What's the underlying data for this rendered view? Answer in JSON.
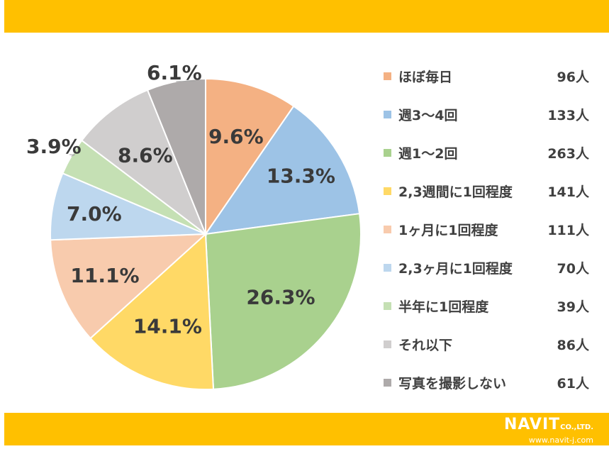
{
  "chart_data": {
    "type": "pie",
    "categories": [
      "ほぼ毎日",
      "週3～4回",
      "週1～2回",
      "2,3週間に1回程度",
      "1ヶ月に1回程度",
      "2,3ヶ月に1回程度",
      "半年に1回程度",
      "それ以下",
      "写真を撮影しない"
    ],
    "values": [
      9.6,
      13.3,
      26.3,
      14.1,
      11.1,
      7.0,
      3.9,
      8.6,
      6.1
    ],
    "labels": [
      "9.6%",
      "13.3%",
      "26.3%",
      "14.1%",
      "11.1%",
      "7.0%",
      "3.9%",
      "8.6%",
      "6.1%"
    ],
    "counts": [
      "96人",
      "133人",
      "263人",
      "141人",
      "111人",
      "70人",
      "39人",
      "86人",
      "61人"
    ],
    "colors": [
      "#F4B183",
      "#9DC3E6",
      "#A9D18E",
      "#FFD966",
      "#F8CBAD",
      "#BDD7EE",
      "#C5E0B4",
      "#D0CECE",
      "#AEAAAA"
    ],
    "legend_position": "right",
    "start_angle": "12 o'clock",
    "direction": "clockwise"
  },
  "branding": {
    "brand_text": "NAVIT",
    "suffix": "CO.,LTD.",
    "url": "www.navit-j.com",
    "bar_color": "#FFC000"
  }
}
